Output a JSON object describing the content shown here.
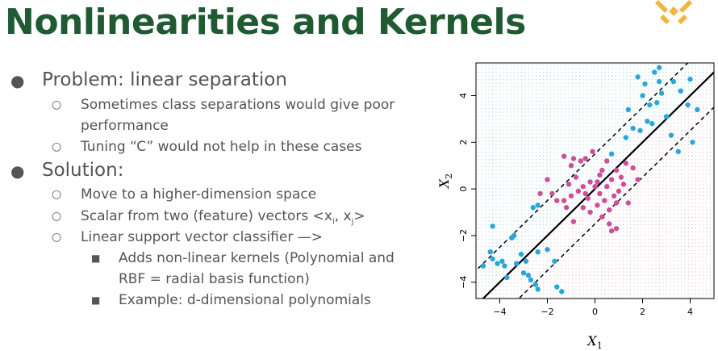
{
  "title": "Nonlinearities and Kernels",
  "bullets": {
    "problem": "Problem: linear separation",
    "problem_sub1_a": "Sometimes class separations would give poor",
    "problem_sub1_b": "performance",
    "problem_sub2": "Tuning “C” would not help in these cases",
    "solution": "Solution:",
    "solution_sub1": "Move to a higher-dimension space",
    "solution_sub2_prefix": "Scalar from two (feature) vectors <x",
    "solution_sub2_i": "i",
    "solution_sub2_mid": ", x",
    "solution_sub2_j": "j",
    "solution_sub2_suffix": ">",
    "solution_sub3": "Linear support vector classifier —>",
    "solution_sub3_a_line1": "Adds non-linear kernels (Polynomial and",
    "solution_sub3_a_line2": "RBF = radial basis function)",
    "solution_sub3_b": "Example: d-dimensional polynomials"
  },
  "chart_data": {
    "type": "scatter",
    "title": "",
    "xlabel": "X1",
    "ylabel": "X2",
    "xlim": [
      -5,
      5
    ],
    "ylim": [
      -4.7,
      5.4
    ],
    "xticks": [
      -4,
      -2,
      0,
      2,
      4
    ],
    "yticks": [
      -4,
      -2,
      0,
      2,
      4
    ],
    "tick_labels_x": [
      "−4",
      "−2",
      "0",
      "2",
      "4"
    ],
    "tick_labels_y": [
      "−4",
      "−2",
      "0",
      "2",
      "4"
    ],
    "colors": {
      "blue": "#2aa7d8",
      "pink": "#cc4f97",
      "line": "#000000"
    },
    "lines": [
      {
        "name": "decision-boundary",
        "style": "solid",
        "intercept": 0,
        "slope": 1
      },
      {
        "name": "margin-upper",
        "style": "dashed",
        "intercept": 1.5,
        "slope": 1
      },
      {
        "name": "margin-lower",
        "style": "dashed",
        "intercept": -1.5,
        "slope": 1
      }
    ],
    "series": [
      {
        "name": "blue-class",
        "points": [
          [
            -4.7,
            -3.3
          ],
          [
            -4.4,
            -2.7
          ],
          [
            -4.3,
            -1.6
          ],
          [
            -4.3,
            -3.0
          ],
          [
            -4.1,
            -3.2
          ],
          [
            -3.9,
            -3.1
          ],
          [
            -3.8,
            -3.3
          ],
          [
            -3.7,
            -3.8
          ],
          [
            -3.5,
            -2.1
          ],
          [
            -3.4,
            -2.0
          ],
          [
            -3.3,
            -3.2
          ],
          [
            -3.1,
            -2.8
          ],
          [
            -3.0,
            -3.6
          ],
          [
            -2.9,
            -3.1
          ],
          [
            -2.8,
            -3.7
          ],
          [
            -2.7,
            -3.9
          ],
          [
            -2.5,
            -4.1
          ],
          [
            -2.4,
            -4.3
          ],
          [
            -2.4,
            -2.7
          ],
          [
            -2.0,
            -2.6
          ],
          [
            -1.7,
            -3.1
          ],
          [
            -1.6,
            -4.2
          ],
          [
            -1.4,
            -4.4
          ],
          [
            -2.6,
            -0.8
          ],
          [
            -2.4,
            -0.7
          ],
          [
            0.7,
            1.5
          ],
          [
            1.3,
            2.2
          ],
          [
            1.4,
            3.4
          ],
          [
            1.6,
            2.6
          ],
          [
            1.9,
            2.5
          ],
          [
            2.0,
            4.0
          ],
          [
            2.1,
            4.5
          ],
          [
            2.2,
            2.9
          ],
          [
            2.3,
            3.6
          ],
          [
            2.4,
            2.8
          ],
          [
            2.6,
            3.7
          ],
          [
            2.7,
            4.6
          ],
          [
            2.8,
            4.1
          ],
          [
            3.0,
            3.1
          ],
          [
            3.2,
            2.3
          ],
          [
            3.3,
            4.6
          ],
          [
            3.5,
            1.6
          ],
          [
            3.6,
            4.2
          ],
          [
            3.9,
            3.6
          ],
          [
            4.1,
            2.0
          ],
          [
            4.3,
            3.4
          ],
          [
            2.5,
            5.0
          ],
          [
            2.7,
            5.2
          ],
          [
            1.8,
            4.8
          ],
          [
            4.0,
            4.7
          ]
        ]
      },
      {
        "name": "pink-class",
        "points": [
          [
            -1.3,
            1.4
          ],
          [
            -1.0,
            1.0
          ],
          [
            -0.9,
            1.3
          ],
          [
            -0.6,
            1.2
          ],
          [
            -0.4,
            1.3
          ],
          [
            -0.1,
            1.6
          ],
          [
            0.3,
            0.8
          ],
          [
            0.5,
            1.2
          ],
          [
            0.7,
            0.4
          ],
          [
            0.9,
            0.8
          ],
          [
            1.1,
            0.5
          ],
          [
            -0.2,
            0.3
          ],
          [
            -0.5,
            0.1
          ],
          [
            -0.7,
            -0.1
          ],
          [
            -1.0,
            -0.3
          ],
          [
            -1.3,
            -0.5
          ],
          [
            -1.1,
            0.2
          ],
          [
            -0.3,
            -0.4
          ],
          [
            0.0,
            0.1
          ],
          [
            0.2,
            -0.2
          ],
          [
            0.4,
            -0.5
          ],
          [
            0.6,
            -0.9
          ],
          [
            0.8,
            -0.3
          ],
          [
            1.0,
            -0.1
          ],
          [
            1.2,
            0.2
          ],
          [
            1.4,
            -0.6
          ],
          [
            0.1,
            -0.7
          ],
          [
            0.3,
            -1.2
          ],
          [
            0.6,
            -1.5
          ],
          [
            0.9,
            -1.7
          ],
          [
            -0.2,
            -1.0
          ],
          [
            -0.5,
            -0.8
          ],
          [
            -0.9,
            -1.4
          ],
          [
            -1.2,
            -0.8
          ],
          [
            -1.6,
            -0.5
          ],
          [
            -1.8,
            -0.2
          ],
          [
            -2.0,
            0.4
          ],
          [
            -2.3,
            -0.2
          ],
          [
            1.6,
            0.9
          ],
          [
            1.8,
            0.4
          ],
          [
            0.5,
            0.1
          ],
          [
            0.2,
            0.6
          ],
          [
            -0.8,
            0.5
          ],
          [
            1.3,
            1.1
          ],
          [
            0.7,
            -1.8
          ],
          [
            0.9,
            -0.6
          ],
          [
            -0.4,
            -0.2
          ],
          [
            0.1,
            0.3
          ]
        ]
      }
    ]
  }
}
